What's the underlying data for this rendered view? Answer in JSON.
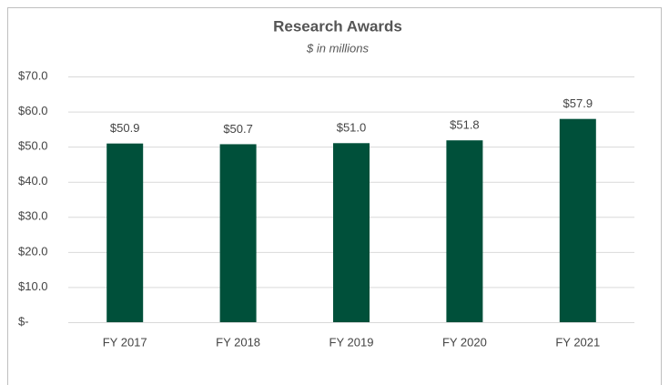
{
  "chart_data": {
    "type": "bar",
    "title": "Research Awards",
    "subtitle": "$ in millions",
    "categories": [
      "FY 2017",
      "FY 2018",
      "FY 2019",
      "FY 2020",
      "FY 2021"
    ],
    "values": [
      50.9,
      50.7,
      51.0,
      51.8,
      57.9
    ],
    "value_labels": [
      "$50.9",
      "$50.7",
      "$51.0",
      "$51.8",
      "$57.9"
    ],
    "color": "#00503a",
    "ylim": [
      0,
      70
    ],
    "yticks": [
      {
        "value": 0,
        "label": "$-"
      },
      {
        "value": 10,
        "label": "$10.0"
      },
      {
        "value": 20,
        "label": "$20.0"
      },
      {
        "value": 30,
        "label": "$30.0"
      },
      {
        "value": 40,
        "label": "$40.0"
      },
      {
        "value": 50,
        "label": "$50.0"
      },
      {
        "value": 60,
        "label": "$60.0"
      },
      {
        "value": 70,
        "label": "$70.0"
      }
    ],
    "grid": true
  }
}
